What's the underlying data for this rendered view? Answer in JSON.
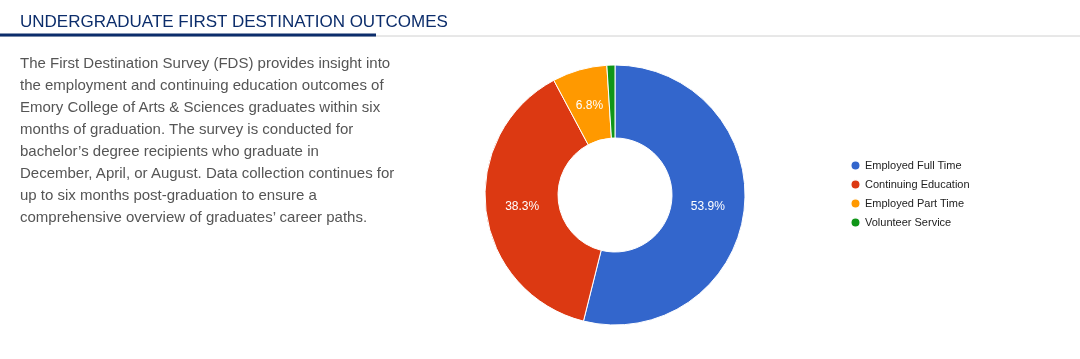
{
  "chart_data": {
    "type": "donut",
    "title": "UNDERGRADUATE FIRST DESTINATION OUTCOMES",
    "annotations": [
      "The First Destination Survey (FDS) provides insight into\nthe employment and continuing education outcomes of\nEmory College of Arts & Sciences graduates within six\nmonths of graduation. The survey is conducted for\nbachelor’s degree recipients who graduate in\nDecember, April, or August. Data collection continues for\nup to six months post-graduation to ensure a\ncomprehensive overview of graduates’ career paths."
    ],
    "categories": [
      "Employed Full Time",
      "Continuing Education",
      "Employed Part Time",
      "Volunteer Service"
    ],
    "values": [
      53.9,
      38.3,
      6.8,
      1.0
    ],
    "colors": [
      "#3366cc",
      "#dc3912",
      "#ff9900",
      "#109618"
    ],
    "value_labels": [
      "53.9%",
      "38.3%",
      "6.8%",
      null
    ],
    "legend": "right"
  }
}
